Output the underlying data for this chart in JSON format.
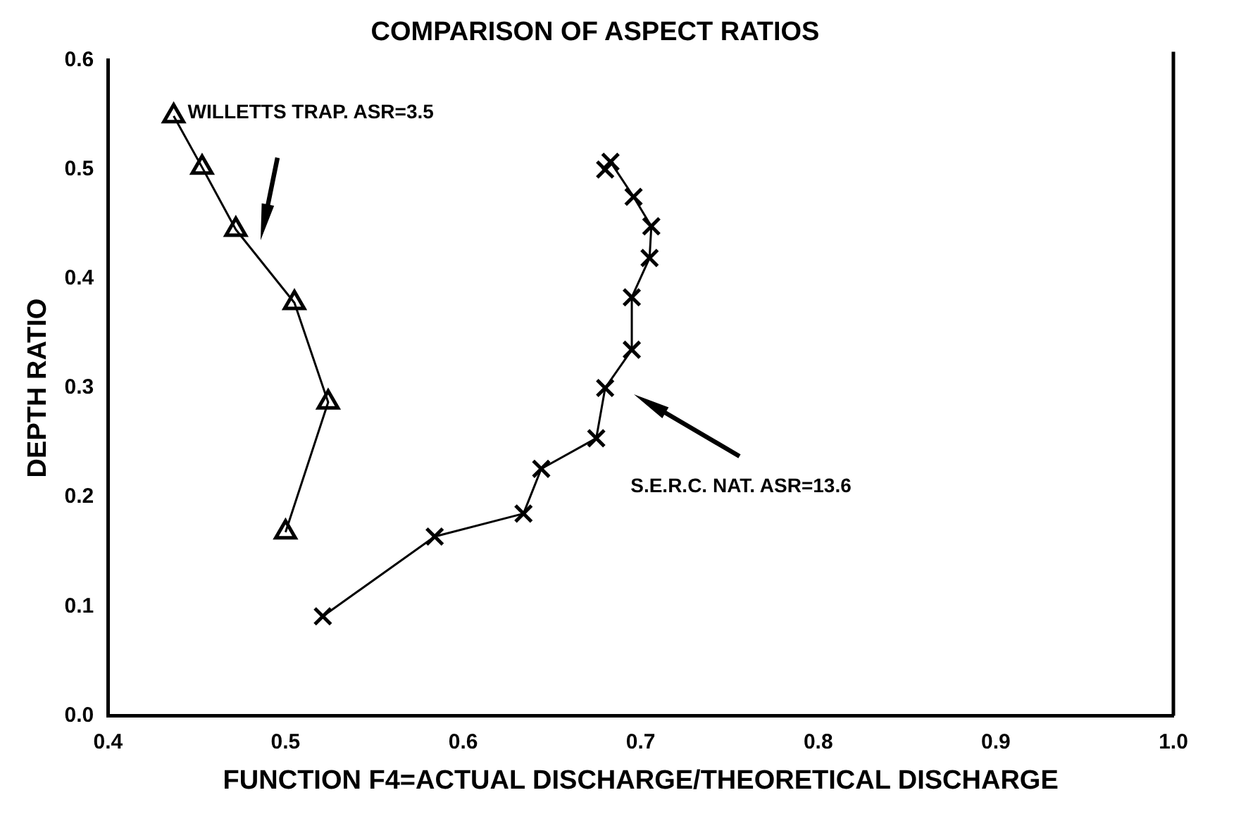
{
  "chart_data": {
    "type": "line",
    "title": "COMPARISON OF ASPECT RATIOS",
    "xlabel": "FUNCTION F4=ACTUAL DISCHARGE/THEORETICAL DISCHARGE",
    "ylabel": "DEPTH RATIO",
    "xlim": [
      0.4,
      1.0
    ],
    "ylim": [
      0.0,
      0.6
    ],
    "xticks": [
      0.4,
      0.5,
      0.6,
      0.7,
      0.8,
      0.9,
      {
        "value": 1.0,
        "label": "1.0"
      }
    ],
    "yticks": [
      {
        "value": 0.0,
        "label": "0.0"
      },
      0.1,
      0.2,
      0.3,
      0.4,
      0.5,
      0.6
    ],
    "grid": false,
    "legend": false,
    "line_style": "solid",
    "series": [
      {
        "name": "WILLETTS TRAP. ASR=3.5",
        "color": "#000000",
        "marker": "triangle",
        "x": [
          0.437,
          0.453,
          0.472,
          0.505,
          0.524,
          0.5
        ],
        "values": [
          0.549,
          0.502,
          0.445,
          0.378,
          0.287,
          0.168
        ]
      },
      {
        "name": "S.E.R.C. NAT. ASR=13.6",
        "color": "#000000",
        "marker": "cross",
        "x": [
          0.68,
          0.683,
          0.696,
          0.706,
          0.705,
          0.695,
          0.695,
          0.68,
          0.675,
          0.644,
          0.634,
          0.584,
          0.521
        ],
        "values": [
          0.5,
          0.507,
          0.475,
          0.448,
          0.419,
          0.383,
          0.335,
          0.3,
          0.254,
          0.226,
          0.185,
          0.164,
          0.091
        ]
      }
    ]
  }
}
